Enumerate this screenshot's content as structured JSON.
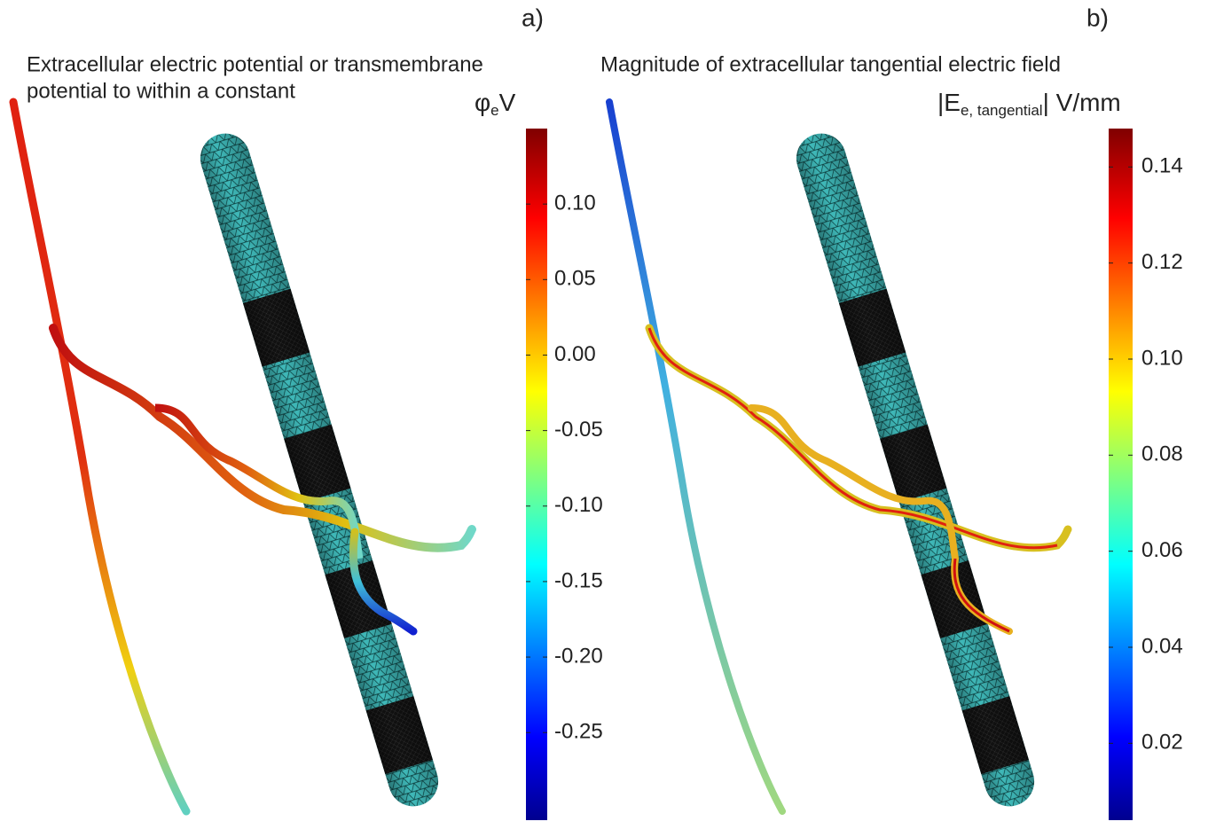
{
  "panels": [
    {
      "label": "a)",
      "title": [
        "Extracellular electric potential or transmembrane",
        "potential to within a constant"
      ],
      "colorbar": {
        "symbol": "φ",
        "subscript": "e",
        "unit": "V",
        "clim": [
          -0.308,
          0.15
        ],
        "ticks": [
          {
            "value": 0.1,
            "label": "0.10"
          },
          {
            "value": 0.05,
            "label": "0.05"
          },
          {
            "value": 0,
            "label": "0.00"
          },
          {
            "value": -0.05,
            "label": "-0.05"
          },
          {
            "value": -0.1,
            "label": "-0.10"
          },
          {
            "value": -0.15,
            "label": "-0.15"
          },
          {
            "value": -0.2,
            "label": "-0.20"
          },
          {
            "value": -0.25,
            "label": "-0.25"
          }
        ]
      }
    },
    {
      "label": "b)",
      "title": [
        "Magnitude of extracellular tangential electric field"
      ],
      "colorbar": {
        "symbol": "|E",
        "subscript": "e, tangential",
        "unit": "| V/mm",
        "clim": [
          0.004,
          0.148
        ],
        "ticks": [
          {
            "value": 0.14,
            "label": "0.14"
          },
          {
            "value": 0.12,
            "label": "0.12"
          },
          {
            "value": 0.1,
            "label": "0.10"
          },
          {
            "value": 0.08,
            "label": "0.08"
          },
          {
            "value": 0.06,
            "label": "0.06"
          },
          {
            "value": 0.04,
            "label": "0.04"
          },
          {
            "value": 0.02,
            "label": "0.02"
          }
        ]
      }
    }
  ]
}
